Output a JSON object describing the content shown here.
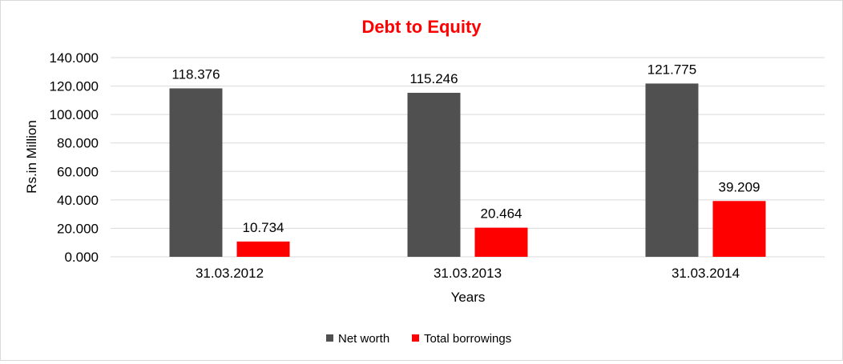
{
  "chart_data": {
    "type": "bar",
    "title": "Debt to Equity",
    "xlabel": "Years",
    "ylabel": "Rs.in Million",
    "categories": [
      "31.03.2012",
      "31.03.2013",
      "31.03.2014"
    ],
    "series": [
      {
        "name": "Net worth",
        "values": [
          118.376,
          115.246,
          121.775
        ],
        "labels": [
          "118.376",
          "115.246",
          "121.775"
        ],
        "color": "#505050"
      },
      {
        "name": "Total borrowings",
        "values": [
          10.734,
          20.464,
          39.209
        ],
        "labels": [
          "10.734",
          "20.464",
          "39.209"
        ],
        "color": "#ff0000"
      }
    ],
    "ylim": [
      0,
      140
    ],
    "yticks": [
      0,
      20,
      40,
      60,
      80,
      100,
      120,
      140
    ],
    "ytick_labels": [
      "0.000",
      "20.000",
      "40.000",
      "60.000",
      "80.000",
      "100.000",
      "120.000",
      "140.000"
    ],
    "grid": true,
    "legend": "bottom",
    "title_color": "#ff0000"
  }
}
